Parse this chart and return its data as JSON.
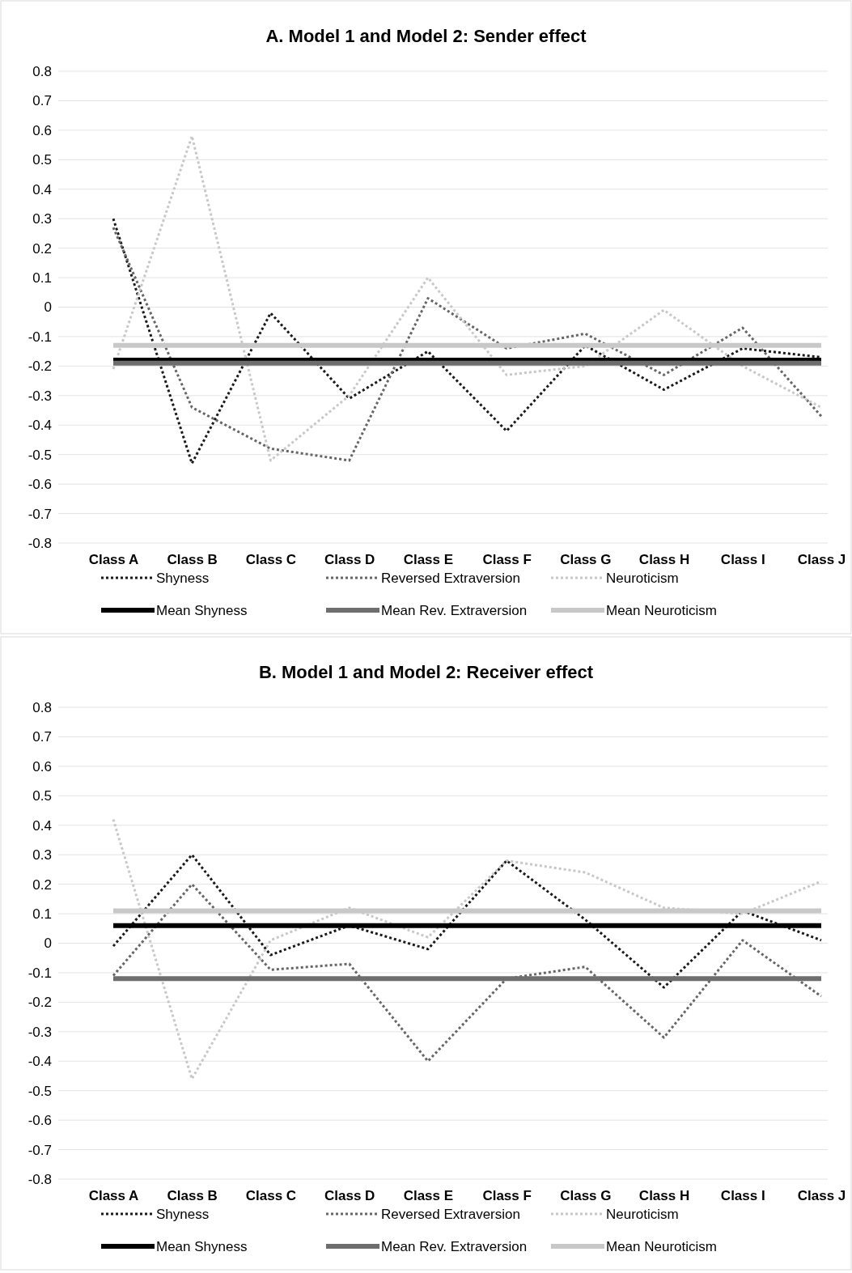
{
  "chart_data": [
    {
      "type": "line",
      "title": "A. Model 1 and Model 2: Sender effect",
      "categories": [
        "Class A",
        "Class B",
        "Class C",
        "Class D",
        "Class E",
        "Class F",
        "Class G",
        "Class H",
        "Class I",
        "Class  J"
      ],
      "series": [
        {
          "name": "Shyness",
          "color": "#1a1a1a",
          "line_style": "dotted",
          "values": [
            0.3,
            -0.53,
            -0.02,
            -0.31,
            -0.15,
            -0.42,
            -0.13,
            -0.28,
            -0.14,
            -0.17
          ]
        },
        {
          "name": "Reversed Extraversion",
          "color": "#666666",
          "line_style": "dotted",
          "values": [
            0.27,
            -0.34,
            -0.48,
            -0.52,
            0.03,
            -0.14,
            -0.09,
            -0.23,
            -0.07,
            -0.37
          ]
        },
        {
          "name": "Neuroticism",
          "color": "#c8c8c8",
          "line_style": "dotted",
          "values": [
            -0.21,
            0.58,
            -0.52,
            -0.3,
            0.1,
            -0.23,
            -0.2,
            -0.01,
            -0.2,
            -0.34
          ]
        },
        {
          "name": "Mean Shyness",
          "color": "#000000",
          "line_style": "solid",
          "values": [
            -0.18,
            -0.18,
            -0.18,
            -0.18,
            -0.18,
            -0.18,
            -0.18,
            -0.18,
            -0.18,
            -0.18
          ]
        },
        {
          "name": "Mean Rev. Extraversion",
          "color": "#6e6e6e",
          "line_style": "solid",
          "values": [
            -0.19,
            -0.19,
            -0.19,
            -0.19,
            -0.19,
            -0.19,
            -0.19,
            -0.19,
            -0.19,
            -0.19
          ]
        },
        {
          "name": "Mean Neuroticism",
          "color": "#c8c8c8",
          "line_style": "solid",
          "values": [
            -0.13,
            -0.13,
            -0.13,
            -0.13,
            -0.13,
            -0.13,
            -0.13,
            -0.13,
            -0.13,
            -0.13
          ]
        }
      ],
      "ylim": [
        -0.8,
        0.8
      ],
      "yticks": [
        0.8,
        0.7,
        0.6,
        0.5,
        0.4,
        0.3,
        0.2,
        0.1,
        0,
        -0.1,
        -0.2,
        -0.3,
        -0.4,
        -0.5,
        -0.6,
        -0.7,
        -0.8
      ],
      "grid": "y",
      "legend": "bottom"
    },
    {
      "type": "line",
      "title": "B. Model 1 and Model 2: Receiver effect",
      "categories": [
        "Class A",
        "Class B",
        "Class C",
        "Class D",
        "Class E",
        "Class F",
        "Class G",
        "Class H",
        "Class I",
        "Class  J"
      ],
      "series": [
        {
          "name": "Shyness",
          "color": "#1a1a1a",
          "line_style": "dotted",
          "values": [
            -0.01,
            0.3,
            -0.04,
            0.06,
            -0.02,
            0.28,
            0.08,
            -0.15,
            0.11,
            0.01
          ]
        },
        {
          "name": "Reversed Extraversion",
          "color": "#666666",
          "line_style": "dotted",
          "values": [
            -0.11,
            0.2,
            -0.09,
            -0.07,
            -0.4,
            -0.12,
            -0.08,
            -0.32,
            0.01,
            -0.18
          ]
        },
        {
          "name": "Neuroticism",
          "color": "#c8c8c8",
          "line_style": "dotted",
          "values": [
            0.42,
            -0.46,
            0.01,
            0.12,
            0.02,
            0.28,
            0.24,
            0.12,
            0.1,
            0.21
          ]
        },
        {
          "name": "Mean Shyness",
          "color": "#000000",
          "line_style": "solid",
          "values": [
            0.06,
            0.06,
            0.06,
            0.06,
            0.06,
            0.06,
            0.06,
            0.06,
            0.06,
            0.06
          ]
        },
        {
          "name": "Mean Rev. Extraversion",
          "color": "#6e6e6e",
          "line_style": "solid",
          "values": [
            -0.12,
            -0.12,
            -0.12,
            -0.12,
            -0.12,
            -0.12,
            -0.12,
            -0.12,
            -0.12,
            -0.12
          ]
        },
        {
          "name": "Mean Neuroticism",
          "color": "#c8c8c8",
          "line_style": "solid",
          "values": [
            0.11,
            0.11,
            0.11,
            0.11,
            0.11,
            0.11,
            0.11,
            0.11,
            0.11,
            0.11
          ]
        }
      ],
      "ylim": [
        -0.8,
        0.8
      ],
      "yticks": [
        0.8,
        0.7,
        0.6,
        0.5,
        0.4,
        0.3,
        0.2,
        0.1,
        0,
        -0.1,
        -0.2,
        -0.3,
        -0.4,
        -0.5,
        -0.6,
        -0.7,
        -0.8
      ],
      "grid": "y",
      "legend": "bottom"
    }
  ]
}
